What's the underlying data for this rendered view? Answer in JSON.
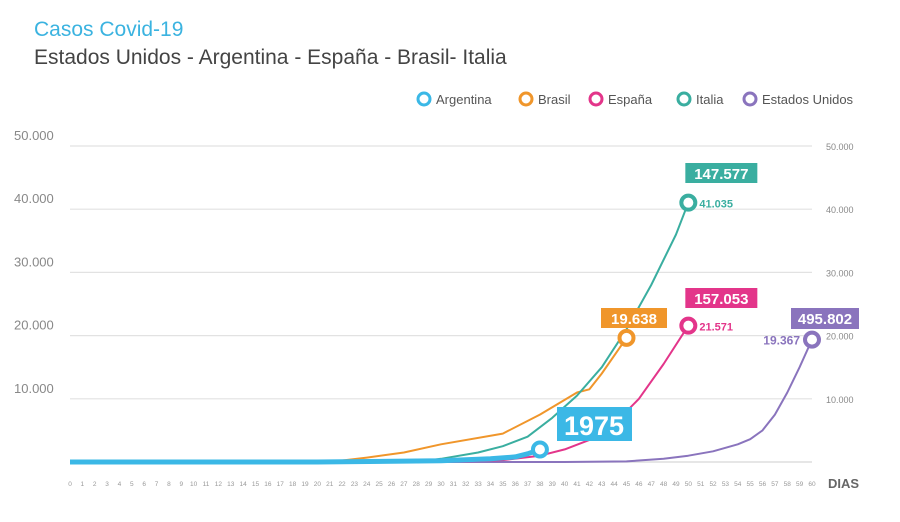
{
  "chart_data": {
    "type": "line",
    "title": "Casos Covid-19",
    "subtitle": "Estados Unidos - Argentina - España - Brasil- Italia",
    "xlabel": "DIAS",
    "ylabel": "",
    "xlim": [
      0,
      60
    ],
    "ylim": [
      0,
      50000
    ],
    "yticks": [
      "10.000",
      "20.000",
      "30.000",
      "40.000",
      "50.000"
    ],
    "ytick_values": [
      10000,
      20000,
      30000,
      40000,
      50000
    ],
    "grid": true,
    "legend_position": "top-right",
    "series": [
      {
        "name": "Argentina",
        "color": "#3bb8e6",
        "x": [
          0,
          10,
          20,
          30,
          34,
          36,
          37,
          38
        ],
        "values": [
          0,
          0,
          0,
          200,
          500,
          800,
          1300,
          1975
        ],
        "end_label": "1975",
        "total_label": "1975"
      },
      {
        "name": "Brasil",
        "color": "#f0962b",
        "x": [
          0,
          21,
          24,
          27,
          30,
          35,
          38,
          41,
          42,
          43,
          45
        ],
        "values": [
          0,
          0,
          700,
          1500,
          2800,
          4500,
          7500,
          11000,
          11500,
          14000,
          19638
        ],
        "end_label": "19.638",
        "total_label": "19.638"
      },
      {
        "name": "España",
        "color": "#e3358a",
        "x": [
          0,
          30,
          35,
          38,
          40,
          42,
          44,
          46,
          48,
          50
        ],
        "values": [
          0,
          0,
          300,
          1000,
          2000,
          3500,
          6000,
          10000,
          15500,
          21571
        ],
        "end_label": "21.571",
        "total_label": "157.053"
      },
      {
        "name": "Italia",
        "color": "#3aaea0",
        "x": [
          0,
          28,
          30,
          33,
          35,
          37,
          39,
          41,
          43,
          45,
          47,
          49,
          50
        ],
        "values": [
          0,
          0,
          500,
          1500,
          2500,
          4000,
          7000,
          10500,
          15000,
          21000,
          28000,
          36000,
          41035
        ],
        "end_label": "41.035",
        "total_label": "147.577"
      },
      {
        "name": "Estados Unidos",
        "color": "#8a74bd",
        "x": [
          0,
          40,
          45,
          48,
          50,
          52,
          54,
          55,
          56,
          57,
          58,
          59,
          60
        ],
        "values": [
          0,
          0,
          100,
          500,
          1000,
          1700,
          2800,
          3600,
          5000,
          7500,
          11000,
          15000,
          19367
        ],
        "end_label": "19.367",
        "total_label": "495.802"
      }
    ]
  }
}
